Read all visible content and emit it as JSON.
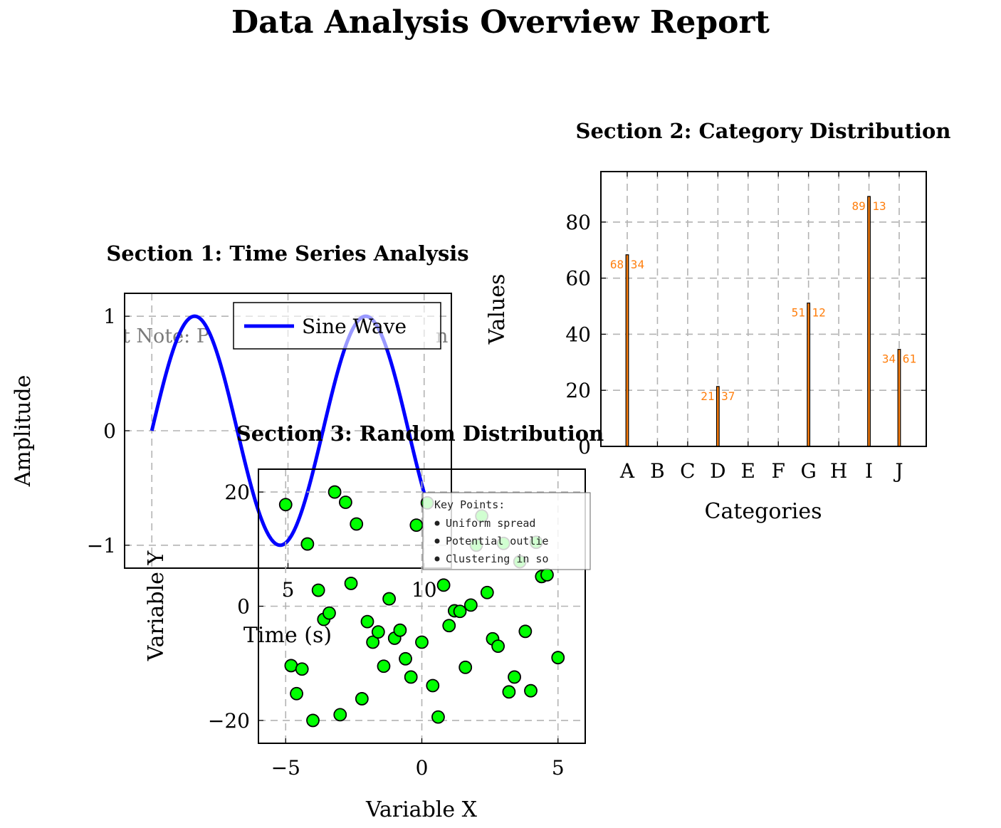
{
  "report_title": "Data Analysis Overview Report",
  "colors": {
    "sine": "#0000ff",
    "bar_fill": "#ff7f0e",
    "bar_edge": "#000000",
    "bar_label": "#ff7f0e",
    "scatter_fill": "#00ff00",
    "scatter_edge": "#000000",
    "grid": "#b3b3b3",
    "note": "#7a7a7a"
  },
  "chart_data": [
    {
      "type": "line",
      "title": "Section 1: Time Series Analysis",
      "xlabel": "Time (s)",
      "ylabel": "Amplitude",
      "xlim": [
        -1.0,
        11.0
      ],
      "ylim": [
        -1.2,
        1.2
      ],
      "x_ticks": [
        5,
        10
      ],
      "y_ticks": [
        -1,
        0,
        1
      ],
      "y_tick_labels": [
        "−1",
        "0",
        "1"
      ],
      "x_grid": [
        0,
        5,
        10
      ],
      "grid": true,
      "legend": {
        "position": "top-right",
        "entries": [
          "Sine Wave"
        ]
      },
      "annotation": "t Note: P",
      "annotation_tail": "n",
      "series": [
        {
          "name": "Sine Wave",
          "function": "sin",
          "x_range": [
            0,
            10
          ]
        }
      ]
    },
    {
      "type": "bar",
      "title": "Section 2: Category Distribution",
      "xlabel": "Categories",
      "ylabel": "Values",
      "ylim": [
        0,
        98
      ],
      "y_ticks": [
        0,
        20,
        40,
        60,
        80
      ],
      "grid": true,
      "categories": [
        "A",
        "B",
        "C",
        "D",
        "E",
        "F",
        "G",
        "H",
        "I",
        "J"
      ],
      "values": [
        68.34,
        0,
        0,
        21.37,
        0,
        0,
        51.12,
        0,
        89.13,
        34.61
      ],
      "data_labels": [
        "68.34",
        "",
        "",
        "21.37",
        "",
        "",
        "51.12",
        "",
        "89.13",
        "34.61"
      ]
    },
    {
      "type": "scatter",
      "title": "Section 3: Random Distribution",
      "xlabel": "Variable X",
      "ylabel": "Variable Y",
      "xlim": [
        -6.0,
        6.0
      ],
      "ylim": [
        -24.0,
        24.0
      ],
      "x_ticks": [
        -5,
        0,
        5
      ],
      "x_tick_labels": [
        "−5",
        "0",
        "5"
      ],
      "y_ticks": [
        -20,
        0,
        20
      ],
      "y_tick_labels": [
        "−20",
        "0",
        "20"
      ],
      "grid": true,
      "points": [
        [
          -5.0,
          17.8
        ],
        [
          -4.8,
          -10.4
        ],
        [
          -4.6,
          -15.3
        ],
        [
          -4.4,
          -11.0
        ],
        [
          -4.2,
          10.9
        ],
        [
          -4.0,
          -20.0
        ],
        [
          -3.8,
          2.8
        ],
        [
          -3.6,
          -2.3
        ],
        [
          -3.4,
          -1.2
        ],
        [
          -3.2,
          20.0
        ],
        [
          -3.0,
          -19.0
        ],
        [
          -2.8,
          18.2
        ],
        [
          -2.6,
          4.0
        ],
        [
          -2.4,
          14.4
        ],
        [
          -2.2,
          -16.2
        ],
        [
          -2.0,
          -2.7
        ],
        [
          -1.8,
          -6.3
        ],
        [
          -1.6,
          -4.5
        ],
        [
          -1.4,
          -10.5
        ],
        [
          -1.2,
          1.3
        ],
        [
          -1.0,
          -5.6
        ],
        [
          -0.8,
          -4.2
        ],
        [
          -0.6,
          -9.2
        ],
        [
          -0.4,
          -12.4
        ],
        [
          -0.2,
          14.2
        ],
        [
          0.0,
          -6.3
        ],
        [
          0.2,
          18.1
        ],
        [
          0.4,
          -13.9
        ],
        [
          0.6,
          -19.4
        ],
        [
          0.8,
          3.7
        ],
        [
          1.0,
          -3.4
        ],
        [
          1.2,
          -0.8
        ],
        [
          1.4,
          -0.9
        ],
        [
          1.6,
          -10.7
        ],
        [
          1.8,
          0.2
        ],
        [
          2.0,
          10.7
        ],
        [
          2.2,
          15.8
        ],
        [
          2.4,
          2.4
        ],
        [
          2.6,
          -5.7
        ],
        [
          2.8,
          -7.0
        ],
        [
          3.0,
          11.0
        ],
        [
          3.2,
          -15.0
        ],
        [
          3.4,
          -12.4
        ],
        [
          3.6,
          7.8
        ],
        [
          3.8,
          -4.4
        ],
        [
          4.0,
          -14.8
        ],
        [
          4.2,
          11.2
        ],
        [
          4.4,
          5.2
        ],
        [
          4.6,
          5.5
        ],
        [
          5.0,
          -9.0
        ]
      ],
      "annotation": {
        "title": "Key Points:",
        "items": [
          "Uniform spread",
          "Potential outlie",
          "Clustering in so"
        ]
      }
    }
  ]
}
